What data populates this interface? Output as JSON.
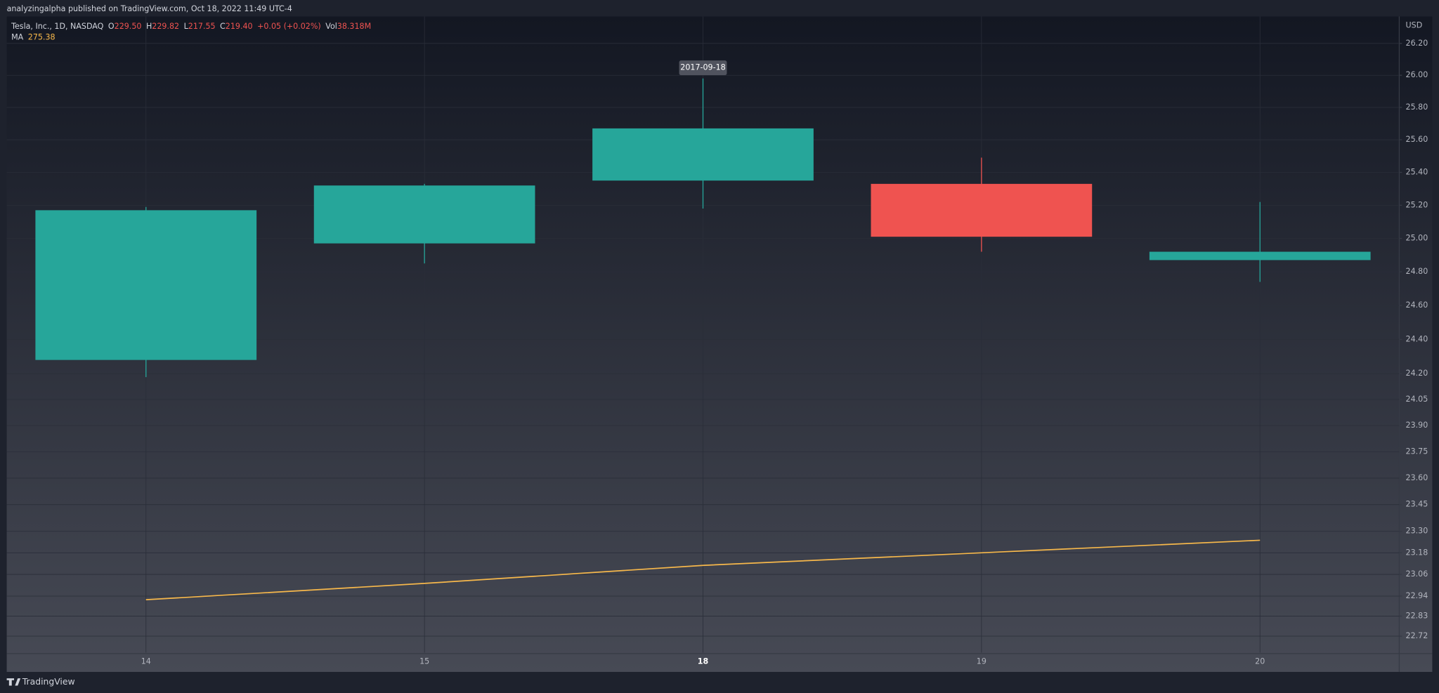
{
  "header": {
    "published": "analyzingalpha published on TradingView.com, Oct 18, 2022 11:49 UTC-4",
    "footer_brand": "TradingView"
  },
  "legend": {
    "symbol": "Tesla, Inc., 1D, NASDAQ",
    "o_label": "O",
    "o_value": "229.50",
    "h_label": "H",
    "h_value": "229.82",
    "l_label": "L",
    "l_value": "217.55",
    "c_label": "C",
    "c_value": "219.40",
    "change": "+0.05 (+0.02%)",
    "vol_label": "Vol",
    "vol_value": "38.318M",
    "ma_value": "275.38"
  },
  "chart_data": {
    "type": "candlestick",
    "currency": "USD",
    "crosshair_label": "2017-09-18",
    "categories": [
      "14",
      "15",
      "18",
      "19",
      "20"
    ],
    "open": [
      24.28,
      24.97,
      25.35,
      25.33,
      24.87
    ],
    "high": [
      25.19,
      25.33,
      25.98,
      25.49,
      25.22
    ],
    "low": [
      24.18,
      24.85,
      25.18,
      24.92,
      24.74
    ],
    "close": [
      25.17,
      25.32,
      25.67,
      25.01,
      24.92
    ],
    "up_color": "#26a69a",
    "down_color": "#ef5350",
    "ma": {
      "name": "MA",
      "color": "#f7b84b",
      "values": [
        22.92,
        23.01,
        23.11,
        23.18,
        23.25
      ]
    },
    "ylim": [
      22.63,
      26.37
    ],
    "log_scale": true,
    "grid": true,
    "yticks": [
      {
        "value": 26.2,
        "label": "26.20"
      },
      {
        "value": 26,
        "label": "26.00"
      },
      {
        "value": 25.8,
        "label": "25.80"
      },
      {
        "value": 25.6,
        "label": "25.60"
      },
      {
        "value": 25.4,
        "label": "25.40"
      },
      {
        "value": 25.2,
        "label": "25.20"
      },
      {
        "value": 25,
        "label": "25.00"
      },
      {
        "value": 24.8,
        "label": "24.80"
      },
      {
        "value": 24.6,
        "label": "24.60"
      },
      {
        "value": 24.4,
        "label": "24.40"
      },
      {
        "value": 24.2,
        "label": "24.20"
      },
      24.05,
      {
        "value": 23.9,
        "label": "23.90"
      },
      23.75,
      {
        "value": 23.6,
        "label": "23.60"
      },
      23.45,
      {
        "value": 23.3,
        "label": "23.30"
      },
      23.18,
      23.06,
      22.94,
      22.83,
      22.72
    ]
  }
}
